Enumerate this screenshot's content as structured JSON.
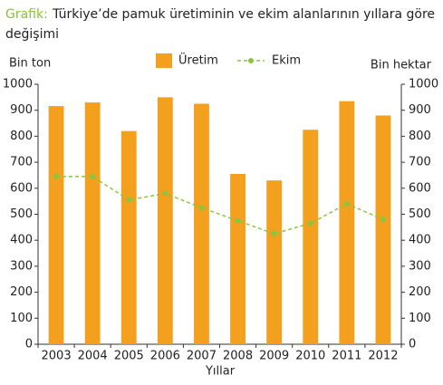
{
  "chart_data": {
    "type": "bar",
    "title_label": "Grafik:",
    "title": "Türkiye’de pamuk üretiminin ve ekim alanlarının yıllara göre değişimi",
    "title_label_color": "#8cbf3f",
    "y_label": "Bin ton",
    "y2_label": "Bin hektar",
    "x_label": "Yıllar",
    "categories": [
      "2003",
      "2004",
      "2005",
      "2006",
      "2007",
      "2008",
      "2009",
      "2010",
      "2011",
      "2012"
    ],
    "series": [
      {
        "name": "Üretim",
        "type": "bar",
        "color": "#f4a01f",
        "values": [
          916,
          930,
          820,
          950,
          925,
          655,
          630,
          825,
          935,
          880
        ]
      },
      {
        "name": "Ekim",
        "type": "line",
        "axis": "y2",
        "color": "#8bc53f",
        "values": [
          645,
          645,
          555,
          580,
          525,
          475,
          425,
          465,
          540,
          480
        ]
      }
    ],
    "ylim": [
      0,
      1000
    ],
    "yticks": [
      0,
      100,
      200,
      300,
      400,
      500,
      600,
      700,
      800,
      900,
      1000
    ],
    "y2lim": [
      0,
      1000
    ],
    "y2ticks": [
      0,
      100,
      200,
      300,
      400,
      500,
      600,
      700,
      800,
      900,
      1000
    ],
    "grid": false
  }
}
